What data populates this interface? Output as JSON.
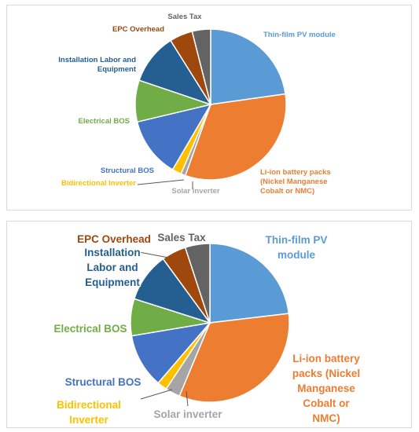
{
  "chart_data": [
    {
      "type": "pie",
      "title": "",
      "slices": [
        {
          "name": "Thin-film PV module",
          "value": 23,
          "label_lines": [
            "Thin-film PV module"
          ],
          "color": "#5b9bd5"
        },
        {
          "name": "Li-ion battery packs (Nickel Manganese Cobalt or NMC)",
          "value": 33,
          "label_lines": [
            "Li-ion battery packs",
            "(Nickel Manganese",
            "Cobalt or NMC)"
          ],
          "color": "#ed7d31"
        },
        {
          "name": "Solar inverter",
          "value": 1,
          "label_lines": [
            "Solar inverter"
          ],
          "color": "#a5a5a5"
        },
        {
          "name": "Bidirectional Inverter",
          "value": 2,
          "label_lines": [
            "Bidirectional Inverter"
          ],
          "color": "#ffc000"
        },
        {
          "name": "Structural BOS",
          "value": 13,
          "label_lines": [
            "Structural BOS"
          ],
          "color": "#4472c4"
        },
        {
          "name": "Electrical BOS",
          "value": 9,
          "label_lines": [
            "Electrical BOS"
          ],
          "color": "#70ad47"
        },
        {
          "name": "Installation Labor and Equipment",
          "value": 11,
          "label_lines": [
            "Installation Labor and",
            "Equipment"
          ],
          "color": "#255e91"
        },
        {
          "name": "EPC Overhead",
          "value": 5,
          "label_lines": [
            "EPC Overhead"
          ],
          "color": "#9e480e"
        },
        {
          "name": "Sales Tax",
          "value": 4,
          "label_lines": [
            "Sales Tax"
          ],
          "color": "#636363"
        }
      ]
    },
    {
      "type": "pie",
      "title": "",
      "slices": [
        {
          "name": "Thin-film PV module",
          "value": 23,
          "label_lines": [
            "Thin-film PV",
            "module"
          ],
          "color": "#5b9bd5"
        },
        {
          "name": "Li-ion battery packs (Nickel Manganese Cobalt or NMC)",
          "value": 33,
          "label_lines": [
            "Li-ion battery",
            "packs (Nickel",
            "Manganese",
            "Cobalt or",
            "NMC)"
          ],
          "color": "#ed7d31"
        },
        {
          "name": "Solar inverter",
          "value": 3,
          "label_lines": [
            "Solar inverter"
          ],
          "color": "#a5a5a5"
        },
        {
          "name": "Bidirectional Inverter",
          "value": 2,
          "label_lines": [
            "Bidirectional",
            "Inverter"
          ],
          "color": "#ffc000"
        },
        {
          "name": "Structural BOS",
          "value": 11,
          "label_lines": [
            "Structural BOS"
          ],
          "color": "#4472c4"
        },
        {
          "name": "Electrical BOS",
          "value": 7.5,
          "label_lines": [
            "Electrical BOS"
          ],
          "color": "#70ad47"
        },
        {
          "name": "Installation Labor and Equipment",
          "value": 10,
          "label_lines": [
            "Installation",
            "Labor and",
            "Equipment"
          ],
          "color": "#255e91"
        },
        {
          "name": "EPC Overhead",
          "value": 5,
          "label_lines": [
            "EPC Overhead"
          ],
          "color": "#9e480e"
        },
        {
          "name": "Sales Tax",
          "value": 5,
          "label_lines": [
            "Sales Tax"
          ],
          "color": "#636363"
        }
      ]
    }
  ]
}
